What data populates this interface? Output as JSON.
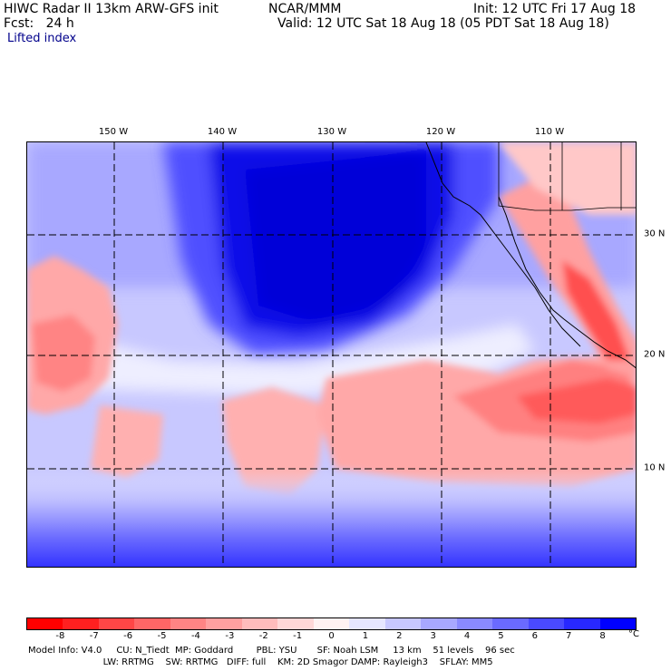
{
  "header": {
    "line1_left": "HIWC Radar II 13km ARW-GFS init",
    "line1_mid": "NCAR/MMM",
    "line1_right": "Init: 12 UTC Fri 17 Aug 18",
    "line2_left": "Fcst:   24 h",
    "line2_right": "Valid: 12 UTC Sat 18 Aug 18 (05 PDT Sat 18 Aug 18)",
    "field_name": "Lifted index"
  },
  "map": {
    "longitude_labels": [
      "150 W",
      "140 W",
      "130 W",
      "120 W",
      "110 W"
    ],
    "latitude_labels": [
      "30 N",
      "20 N",
      "10 N"
    ],
    "grid_style": "dashed",
    "positive_color": "#ff0000",
    "negative_color": "#0000ff"
  },
  "colorbar": {
    "tick_labels": [
      "-8",
      "-7",
      "-6",
      "-5",
      "-4",
      "-3",
      "-2",
      "-1",
      "0",
      "1",
      "2",
      "3",
      "4",
      "5",
      "6",
      "7",
      "8"
    ],
    "unit": "°C",
    "colors": [
      "#ff0000",
      "#ff2020",
      "#ff4646",
      "#ff6666",
      "#ff8484",
      "#ffa0a0",
      "#ffbcbc",
      "#ffd8d8",
      "#fff2f2",
      "#e6e6ff",
      "#c8c8ff",
      "#a8a8ff",
      "#8a8aff",
      "#6a6aff",
      "#4a4aff",
      "#2828ff",
      "#0000ff"
    ]
  },
  "footer": {
    "line1": "Model Info: V4.0     CU: N_Tiedt  MP: Goddard        PBL: YSU       SF: Noah LSM     13 km    51 levels    96 sec",
    "line2": "                          LW: RRTMG    SW: RRTMG   DIFF: full    KM: 2D Smagor DAMP: Rayleigh3    SFLAY: MM5"
  }
}
